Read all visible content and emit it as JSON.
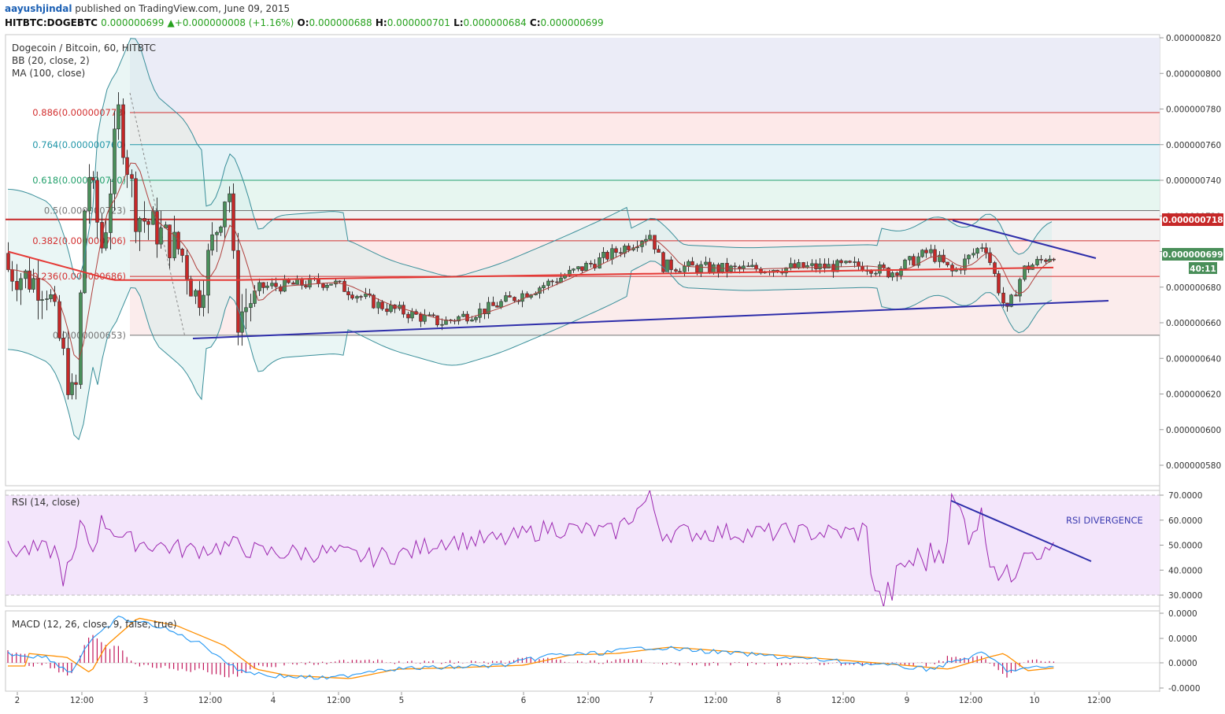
{
  "header": {
    "user": "aayushjindal",
    "published": "published on TradingView.com, June 09, 2015",
    "symbol": "HITBTC:DOGEBTC",
    "last": "0.000000699",
    "arrow": "▲",
    "change": "+0.000000008 (+1.16%)",
    "o_label": "O:",
    "o": "0.000000688",
    "h_label": "H:",
    "h": "0.000000701",
    "l_label": "L:",
    "l": "0.000000684",
    "c_label": "C:",
    "c": "0.000000699"
  },
  "main_pane": {
    "title": "Dogecoin / Bitcoin, 60, HITBTC",
    "bb_label": "BB (20, close, 2)",
    "ma_label": "MA (100, close)",
    "y_ticks": [
      "0.000000820",
      "0.000000800",
      "0.000000780",
      "0.000000760",
      "0.000000740",
      "0.000000720",
      "0.000000700",
      "0.000000680",
      "0.000000660",
      "0.000000640",
      "0.000000620",
      "0.000000600",
      "0.000000580"
    ],
    "price_tag_red": "0.000000718",
    "price_tag_green": "0.000000699",
    "countdown": "40:11",
    "fib_levels": [
      {
        "label": "0.886(0.000000778)",
        "value": 7.78e-07,
        "color": "#d32f2f"
      },
      {
        "label": "0.764(0.000000760)",
        "value": 7.6e-07,
        "color": "#2196a8"
      },
      {
        "label": "0.618(0.000000740)",
        "value": 7.4e-07,
        "color": "#22a06b"
      },
      {
        "label": "0.5(0.000000723)",
        "value": 7.23e-07,
        "color": "#757575"
      },
      {
        "label": "0.382(0.000000706)",
        "value": 7.06e-07,
        "color": "#d32f2f"
      },
      {
        "label": "0.236(0.000000686)",
        "value": 6.86e-07,
        "color": "#d32f2f"
      },
      {
        "label": "0(0.000000653)",
        "value": 6.53e-07,
        "color": "#757575"
      }
    ],
    "resistance_value": 7.18e-07
  },
  "x_axis": {
    "labels": [
      "2",
      "12:00",
      "3",
      "12:00",
      "4",
      "12:00",
      "5",
      "6",
      "12:00",
      "7",
      "12:00",
      "8",
      "12:00",
      "9",
      "12:00",
      "10",
      "12:00"
    ]
  },
  "rsi_pane": {
    "title": "RSI (14, close)",
    "y_ticks": [
      "70.0000",
      "60.0000",
      "50.0000",
      "40.0000",
      "30.0000"
    ],
    "annotation": "RSI DIVERGENCE"
  },
  "macd_pane": {
    "title": "MACD (12, 26, close, 9, false, true)",
    "y_ticks": [
      "0.0000",
      "0.0000",
      "0.0000",
      "-0.0000"
    ]
  },
  "colors": {
    "up": "#4a8f5a",
    "down": "#c62828",
    "ma": "#e53935",
    "bb": "#3a8f9a",
    "trend": "#2e2eaa",
    "rsi": "#9c27b0",
    "macd": "#2196f3",
    "signal": "#ff8f00"
  },
  "chart_data": [
    {
      "type": "candlestick",
      "title": "Dogecoin / Bitcoin, 60, HITBTC",
      "ylim": [
        5.75e-07,
        8.25e-07
      ],
      "x_categories": [
        "Jun 2",
        "Jun 3",
        "Jun 4",
        "Jun 5",
        "Jun 6",
        "Jun 7",
        "Jun 8",
        "Jun 9",
        "Jun 10"
      ],
      "last_close": 6.99e-07,
      "ohlc_last": {
        "o": 6.88e-07,
        "h": 7.01e-07,
        "l": 6.84e-07,
        "c": 6.99e-07
      }
    },
    {
      "type": "line",
      "title": "RSI (14, close)",
      "ylim": [
        25,
        72
      ]
    },
    {
      "type": "line",
      "title": "MACD (12, 26, close, 9, false, true)"
    }
  ]
}
